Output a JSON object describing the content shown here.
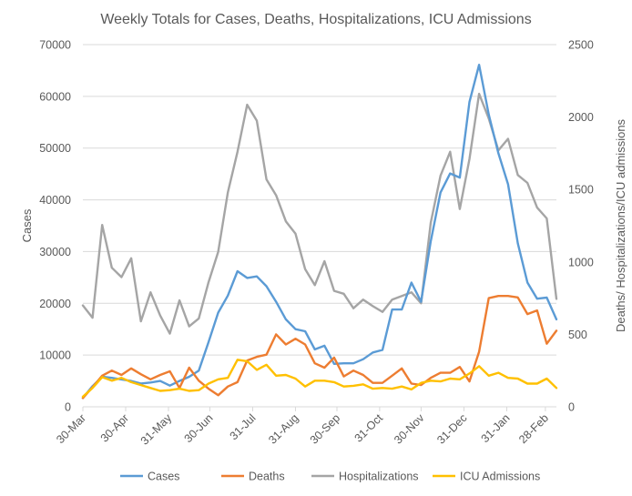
{
  "chart_data": {
    "type": "line",
    "title": "Weekly Totals for Cases, Deaths, Hospitalizations, ICU Admissions",
    "xlabel": "",
    "ylabel": "Cases",
    "y2label": "Deaths/ Hospitalizations/ICU admissions",
    "ylim": [
      0,
      70000
    ],
    "y2lim": [
      0,
      2500
    ],
    "yticks": [
      "0",
      "10000",
      "20000",
      "30000",
      "40000",
      "50000",
      "60000",
      "70000"
    ],
    "y2ticks": [
      "0",
      "500",
      "1000",
      "1500",
      "2000",
      "2500"
    ],
    "yticks_values": [
      0,
      10000,
      20000,
      30000,
      40000,
      50000,
      60000,
      70000
    ],
    "y2ticks_values": [
      0,
      500,
      1000,
      1500,
      2000,
      2500
    ],
    "x_tick_labels": [
      {
        "label": "30-Mar",
        "index": 0
      },
      {
        "label": "30-Apr",
        "index": 4.43
      },
      {
        "label": "31-May",
        "index": 8.86
      },
      {
        "label": "30-Jun",
        "index": 13.14
      },
      {
        "label": "31-Jul",
        "index": 17.57
      },
      {
        "label": "31-Aug",
        "index": 22
      },
      {
        "label": "30-Sep",
        "index": 26.29
      },
      {
        "label": "31-Oct",
        "index": 30.71
      },
      {
        "label": "30-Nov",
        "index": 35
      },
      {
        "label": "31-Dec",
        "index": 39.43
      },
      {
        "label": "31-Jan",
        "index": 43.86
      },
      {
        "label": "28-Feb",
        "index": 47.86
      }
    ],
    "grid": true,
    "legend_position": "bottom",
    "series": [
      {
        "name": "Cases",
        "axis": "left",
        "color": "#5b9bd5",
        "values": [
          1700,
          4000,
          5800,
          5600,
          5300,
          5000,
          4500,
          4700,
          5000,
          4100,
          5000,
          5800,
          7000,
          12500,
          18200,
          21500,
          26200,
          24900,
          25200,
          23300,
          20300,
          16900,
          15000,
          14600,
          11100,
          11800,
          8300,
          8400,
          8400,
          9200,
          10500,
          11000,
          18800,
          18800,
          24000,
          20300,
          32000,
          41400,
          45100,
          44300,
          58900,
          66100,
          56500,
          49000,
          43000,
          31600,
          24000,
          20900,
          21100,
          16900
        ]
      },
      {
        "name": "Deaths",
        "axis": "right",
        "color": "#ed7d31",
        "values": [
          60,
          135,
          215,
          250,
          220,
          265,
          225,
          190,
          220,
          245,
          130,
          270,
          180,
          125,
          80,
          140,
          170,
          320,
          345,
          360,
          500,
          430,
          470,
          430,
          300,
          270,
          340,
          210,
          250,
          220,
          165,
          165,
          215,
          265,
          160,
          150,
          200,
          235,
          235,
          275,
          175,
          380,
          750,
          765,
          765,
          755,
          640,
          665,
          435,
          525
        ]
      },
      {
        "name": "Hospitalizations",
        "axis": "right",
        "color": "#a5a5a5",
        "values": [
          700,
          615,
          1255,
          960,
          895,
          1025,
          590,
          790,
          630,
          505,
          735,
          555,
          610,
          860,
          1070,
          1480,
          1760,
          2085,
          1975,
          1570,
          1460,
          1280,
          1195,
          950,
          840,
          1005,
          800,
          780,
          680,
          740,
          695,
          655,
          740,
          765,
          790,
          715,
          1270,
          1595,
          1760,
          1365,
          1710,
          2160,
          1990,
          1770,
          1850,
          1600,
          1545,
          1375,
          1300,
          745
        ]
      },
      {
        "name": "ICU Admissions",
        "axis": "right",
        "color": "#ffc000",
        "values": [
          70,
          130,
          205,
          180,
          200,
          170,
          150,
          130,
          110,
          115,
          125,
          110,
          115,
          160,
          190,
          200,
          325,
          315,
          255,
          290,
          215,
          220,
          195,
          140,
          180,
          180,
          170,
          140,
          145,
          155,
          125,
          130,
          125,
          140,
          120,
          165,
          180,
          175,
          195,
          190,
          230,
          280,
          215,
          235,
          200,
          195,
          160,
          160,
          195,
          130
        ]
      }
    ]
  }
}
